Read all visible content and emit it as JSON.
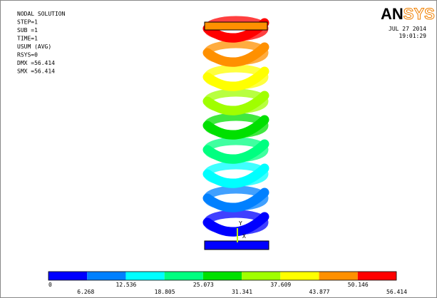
{
  "header": {
    "lines": [
      "NODAL SOLUTION",
      "STEP=1",
      "SUB =1",
      "TIME=1",
      "USUM      (AVG)",
      "RSYS=0",
      "DMX =56.414",
      "SMX =56.414"
    ],
    "logo": [
      "AN",
      "SYS"
    ],
    "date": "JUL 27 2014",
    "time": "19:01:29"
  },
  "triad": {
    "y": "Y",
    "x": "X"
  },
  "legend": {
    "labels": [
      "0",
      "6.268",
      "12.536",
      "18.805",
      "25.073",
      "31.341",
      "37.609",
      "43.877",
      "50.146",
      "56.414"
    ],
    "colors": [
      "#0000ff",
      "#0080ff",
      "#00ffff",
      "#00ff80",
      "#00e000",
      "#a0ff00",
      "#ffff00",
      "#ff9000",
      "#ff0000"
    ]
  }
}
